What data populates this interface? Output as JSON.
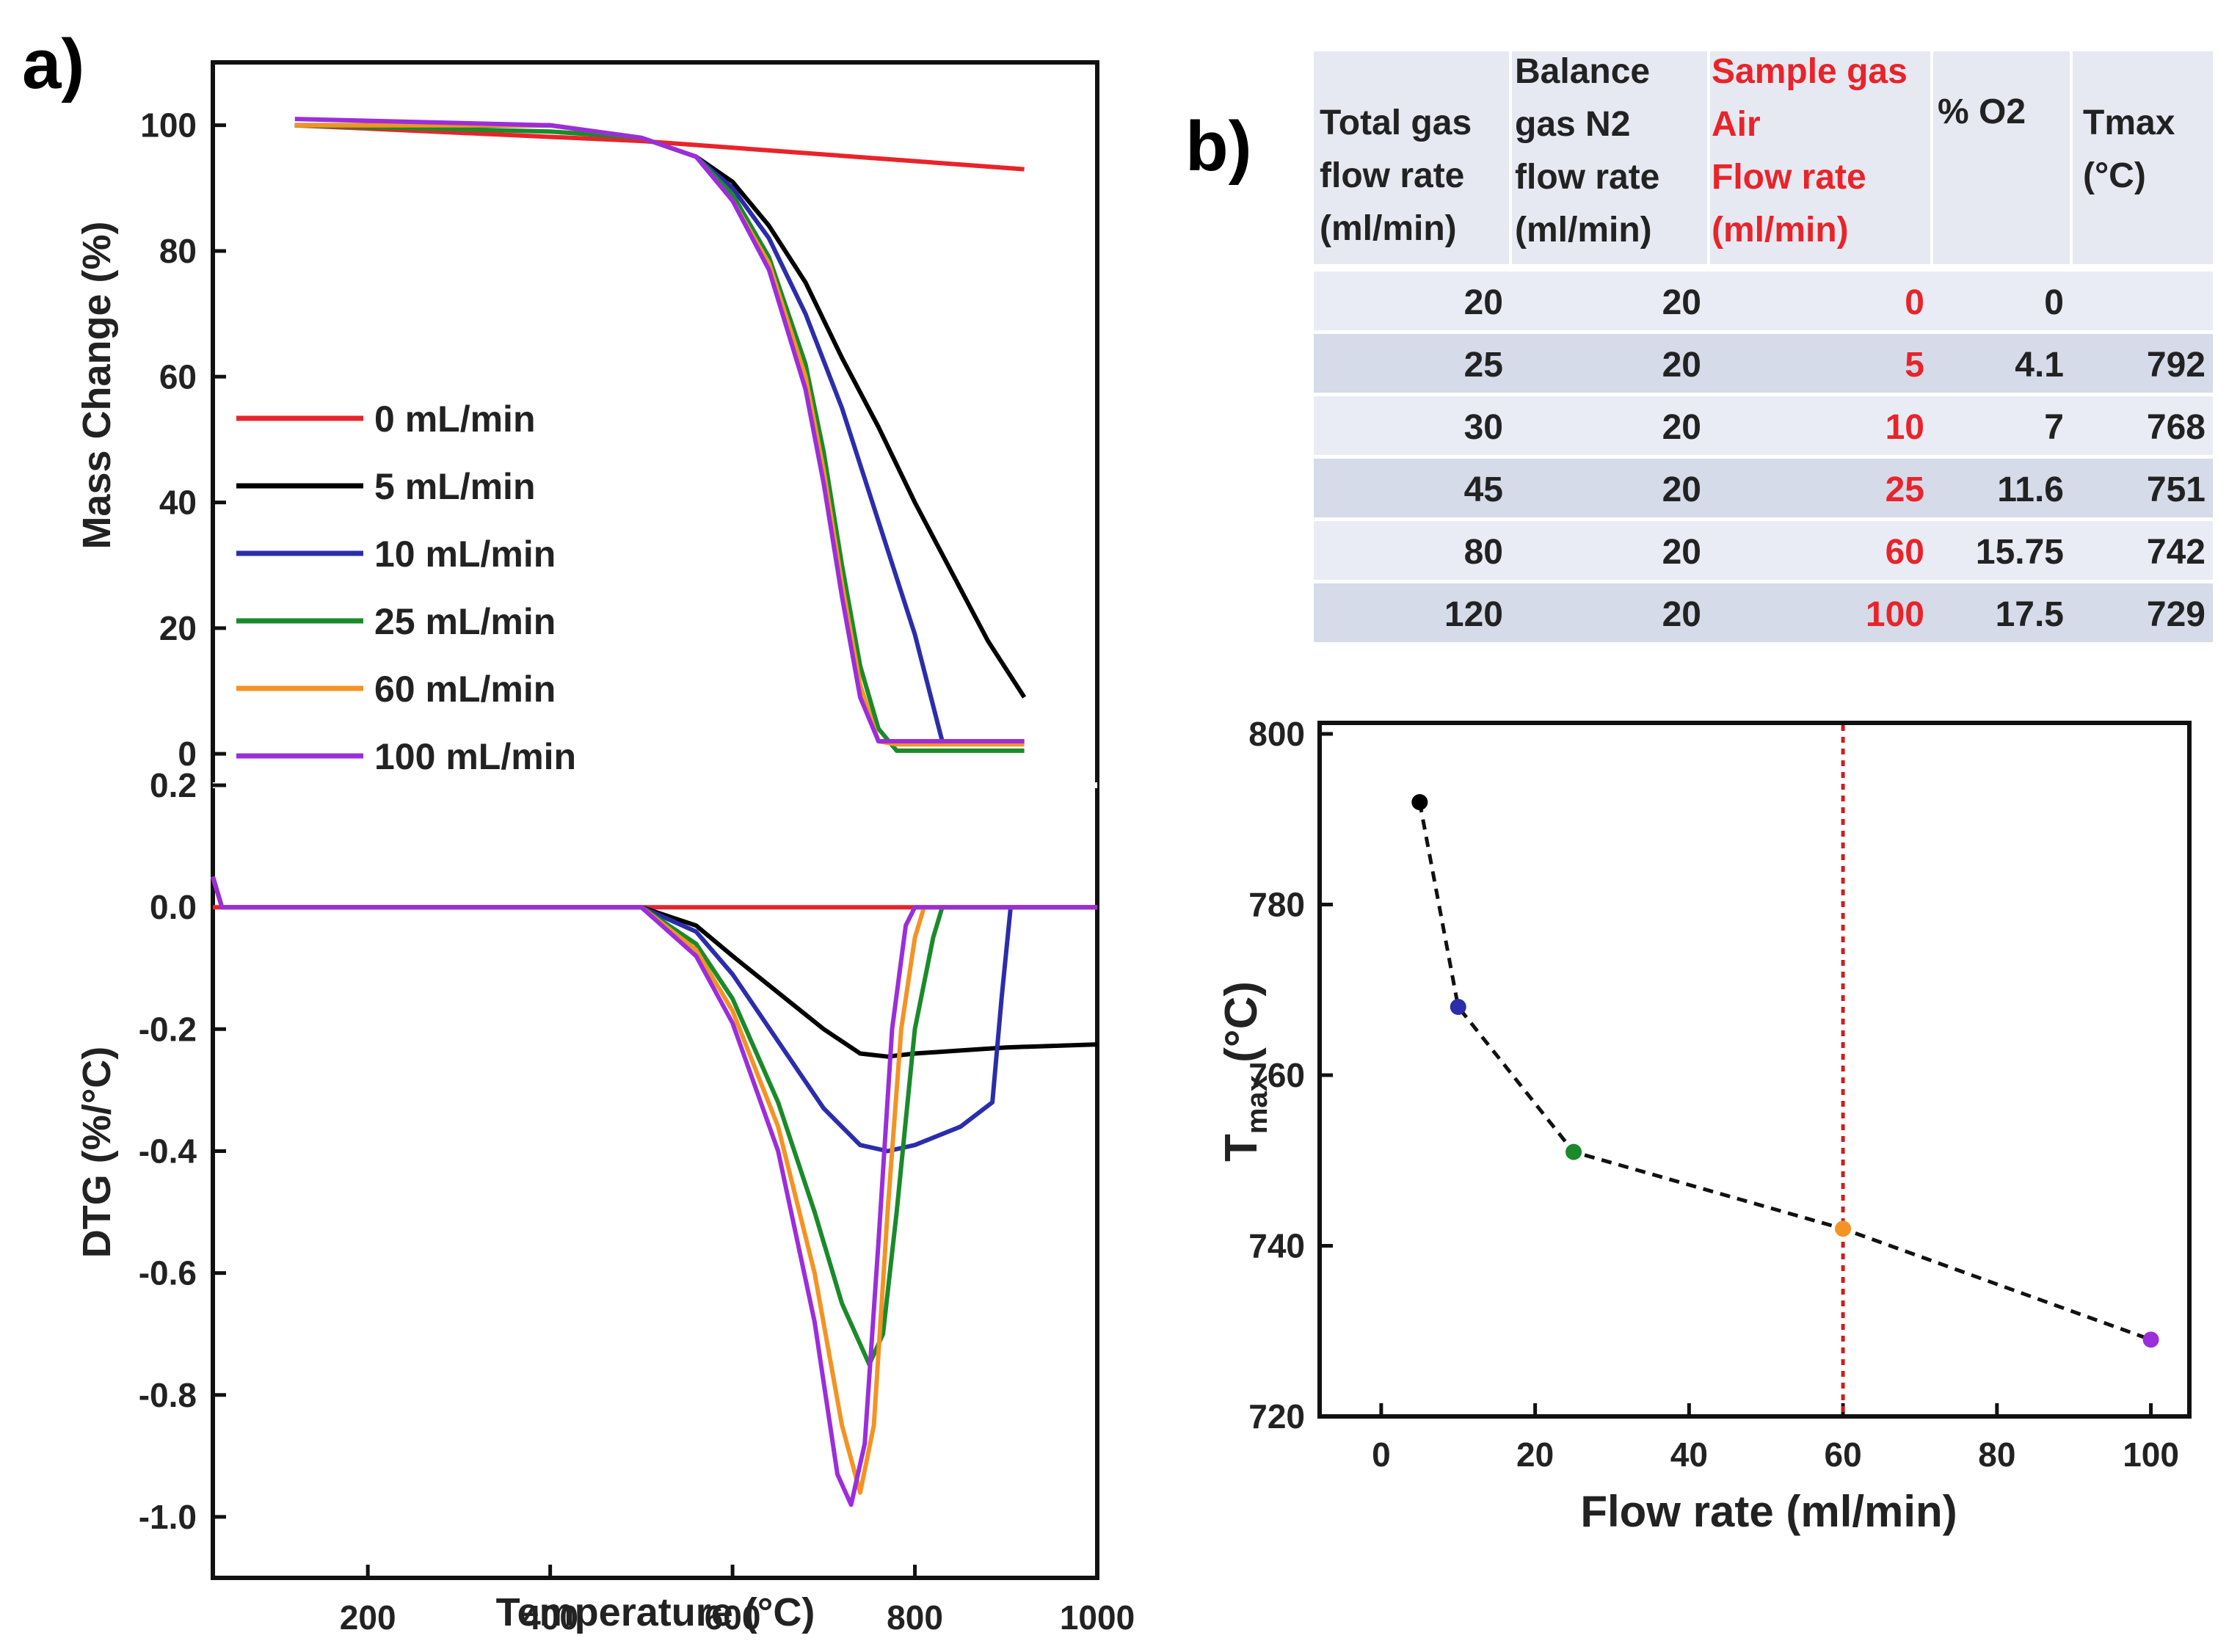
{
  "labels": {
    "panel_a": "a)",
    "panel_b": "b)"
  },
  "chart_data": [
    {
      "type": "line",
      "xlabel": "",
      "ylabel": "Mass Change (%)",
      "xlim": [
        30,
        1000
      ],
      "ylim": [
        -5,
        110
      ],
      "yticks": [
        "0",
        "20",
        "40",
        "60",
        "80",
        "100"
      ],
      "legend_placement": "left",
      "series": [
        {
          "name": "0 mL/min",
          "color": "#e8242a",
          "points": [
            [
              120,
              100
            ],
            [
              500,
              97.5
            ],
            [
              920,
              93
            ]
          ]
        },
        {
          "name": "5 mL/min",
          "color": "#000000",
          "points": [
            [
              120,
              100
            ],
            [
              400,
              100
            ],
            [
              500,
              98
            ],
            [
              560,
              95
            ],
            [
              600,
              91
            ],
            [
              640,
              84
            ],
            [
              680,
              75
            ],
            [
              720,
              63
            ],
            [
              760,
              52
            ],
            [
              800,
              40
            ],
            [
              840,
              29
            ],
            [
              880,
              18
            ],
            [
              920,
              9
            ]
          ]
        },
        {
          "name": "10 mL/min",
          "color": "#2b2dab",
          "points": [
            [
              120,
              100
            ],
            [
              400,
              100
            ],
            [
              500,
              98
            ],
            [
              560,
              95
            ],
            [
              600,
              90
            ],
            [
              640,
              82
            ],
            [
              680,
              70
            ],
            [
              720,
              55
            ],
            [
              760,
              37
            ],
            [
              800,
              19
            ],
            [
              830,
              2
            ],
            [
              920,
              2
            ]
          ]
        },
        {
          "name": "25 mL/min",
          "color": "#1a8a2a",
          "points": [
            [
              120,
              100
            ],
            [
              400,
              99
            ],
            [
              500,
              98
            ],
            [
              560,
              95
            ],
            [
              600,
              89
            ],
            [
              640,
              79
            ],
            [
              680,
              62
            ],
            [
              700,
              48
            ],
            [
              720,
              30
            ],
            [
              740,
              14
            ],
            [
              760,
              4
            ],
            [
              780,
              0.5
            ],
            [
              920,
              0.5
            ]
          ]
        },
        {
          "name": "60 mL/min",
          "color": "#f39324",
          "points": [
            [
              120,
              100
            ],
            [
              400,
              100
            ],
            [
              500,
              98
            ],
            [
              560,
              95
            ],
            [
              600,
              88
            ],
            [
              640,
              78
            ],
            [
              680,
              60
            ],
            [
              700,
              45
            ],
            [
              720,
              27
            ],
            [
              740,
              11
            ],
            [
              760,
              2
            ],
            [
              780,
              1.5
            ],
            [
              920,
              1.5
            ]
          ]
        },
        {
          "name": "100 mL/min",
          "color": "#9b2ddb",
          "points": [
            [
              120,
              101
            ],
            [
              400,
              100
            ],
            [
              500,
              98
            ],
            [
              560,
              95
            ],
            [
              600,
              88
            ],
            [
              640,
              77
            ],
            [
              680,
              58
            ],
            [
              700,
              43
            ],
            [
              720,
              25
            ],
            [
              740,
              9
            ],
            [
              760,
              2
            ],
            [
              780,
              2
            ],
            [
              920,
              2
            ]
          ]
        }
      ]
    },
    {
      "type": "line",
      "xlabel": "Temperature (°C)",
      "ylabel": "DTG (%/°C)",
      "xlim": [
        30,
        1000
      ],
      "ylim": [
        -1.1,
        0.2
      ],
      "xticks": [
        "200",
        "400",
        "600",
        "800",
        "1000"
      ],
      "yticks": [
        "0.2",
        "0.0",
        "-0.2",
        "-0.4",
        "-0.6",
        "-0.8",
        "-1.0"
      ],
      "series": [
        {
          "name": "0 mL/min",
          "color": "#e8242a",
          "points": [
            [
              30,
              0
            ],
            [
              1000,
              0
            ]
          ]
        },
        {
          "name": "5 mL/min",
          "color": "#000000",
          "points": [
            [
              30,
              0.05
            ],
            [
              40,
              0
            ],
            [
              500,
              0
            ],
            [
              560,
              -0.03
            ],
            [
              600,
              -0.08
            ],
            [
              650,
              -0.14
            ],
            [
              700,
              -0.2
            ],
            [
              740,
              -0.24
            ],
            [
              770,
              -0.245
            ],
            [
              800,
              -0.24
            ],
            [
              850,
              -0.235
            ],
            [
              900,
              -0.23
            ],
            [
              1000,
              -0.225
            ]
          ]
        },
        {
          "name": "10 mL/min",
          "color": "#2b2dab",
          "points": [
            [
              30,
              0.05
            ],
            [
              40,
              0
            ],
            [
              500,
              0
            ],
            [
              560,
              -0.04
            ],
            [
              600,
              -0.11
            ],
            [
              650,
              -0.22
            ],
            [
              700,
              -0.33
            ],
            [
              740,
              -0.39
            ],
            [
              770,
              -0.4
            ],
            [
              800,
              -0.39
            ],
            [
              850,
              -0.36
            ],
            [
              885,
              -0.32
            ],
            [
              895,
              -0.15
            ],
            [
              905,
              0
            ],
            [
              1000,
              0
            ]
          ]
        },
        {
          "name": "25 mL/min",
          "color": "#1a8a2a",
          "points": [
            [
              30,
              0.05
            ],
            [
              40,
              0
            ],
            [
              500,
              0
            ],
            [
              560,
              -0.06
            ],
            [
              600,
              -0.15
            ],
            [
              650,
              -0.32
            ],
            [
              690,
              -0.5
            ],
            [
              720,
              -0.65
            ],
            [
              750,
              -0.75
            ],
            [
              765,
              -0.7
            ],
            [
              780,
              -0.5
            ],
            [
              800,
              -0.2
            ],
            [
              820,
              -0.05
            ],
            [
              830,
              0
            ],
            [
              1000,
              0
            ]
          ]
        },
        {
          "name": "60 mL/min",
          "color": "#f39324",
          "points": [
            [
              30,
              0.05
            ],
            [
              40,
              0
            ],
            [
              500,
              0
            ],
            [
              560,
              -0.07
            ],
            [
              600,
              -0.17
            ],
            [
              650,
              -0.36
            ],
            [
              690,
              -0.6
            ],
            [
              720,
              -0.85
            ],
            [
              740,
              -0.96
            ],
            [
              755,
              -0.85
            ],
            [
              770,
              -0.5
            ],
            [
              785,
              -0.2
            ],
            [
              800,
              -0.05
            ],
            [
              810,
              0
            ],
            [
              1000,
              0
            ]
          ]
        },
        {
          "name": "100 mL/min",
          "color": "#9b2ddb",
          "points": [
            [
              30,
              0.05
            ],
            [
              40,
              0
            ],
            [
              500,
              0
            ],
            [
              560,
              -0.08
            ],
            [
              600,
              -0.19
            ],
            [
              650,
              -0.4
            ],
            [
              690,
              -0.68
            ],
            [
              715,
              -0.93
            ],
            [
              730,
              -0.98
            ],
            [
              745,
              -0.88
            ],
            [
              760,
              -0.55
            ],
            [
              775,
              -0.2
            ],
            [
              790,
              -0.03
            ],
            [
              800,
              0
            ],
            [
              1000,
              0
            ]
          ]
        }
      ]
    },
    {
      "type": "table",
      "header_black": [
        "Total gas flow rate (ml/min)",
        "Balance gas N2 flow rate (ml/min)"
      ],
      "header_red": "Sample gas Air Flow rate (ml/min)",
      "header_tail": [
        "% O2",
        "Tmax (°C)"
      ],
      "header_lines": {
        "total": [
          "Total gas",
          "flow rate",
          "(ml/min)"
        ],
        "balance": [
          "Balance",
          "gas  N2",
          "flow rate",
          "(ml/min)"
        ],
        "sample": [
          "Sample gas",
          "Air",
          "Flow rate",
          "(ml/min)"
        ],
        "o2": [
          "% O2"
        ],
        "tmax": [
          "Tmax",
          "(°C)"
        ]
      },
      "rows": [
        [
          "20",
          "20",
          "0",
          "0",
          ""
        ],
        [
          "25",
          "20",
          "5",
          "4.1",
          "792"
        ],
        [
          "30",
          "20",
          "10",
          "7",
          "768"
        ],
        [
          "45",
          "20",
          "25",
          "11.6",
          "751"
        ],
        [
          "80",
          "20",
          "60",
          "15.75",
          "742"
        ],
        [
          "120",
          "20",
          "100",
          "17.5",
          "729"
        ]
      ]
    },
    {
      "type": "scatter",
      "xlabel": "Flow rate (ml/min)",
      "ylabel_main": "T",
      "ylabel_sub": "max",
      "ylabel_unit": " (°C)",
      "xlim": [
        -8,
        105
      ],
      "ylim": [
        720,
        800
      ],
      "xticks": [
        "0",
        "20",
        "40",
        "60",
        "80",
        "100"
      ],
      "yticks": [
        "720",
        "740",
        "760",
        "780",
        "800"
      ],
      "reference_line_x": 60,
      "reference_line_color": "#cc1f1f",
      "points": [
        {
          "x": 5,
          "y": 792,
          "color": "#000000"
        },
        {
          "x": 10,
          "y": 768,
          "color": "#2b2dab"
        },
        {
          "x": 25,
          "y": 751,
          "color": "#1a8a2a"
        },
        {
          "x": 60,
          "y": 742,
          "color": "#f39324"
        },
        {
          "x": 100,
          "y": 729,
          "color": "#9b2ddb"
        }
      ]
    }
  ]
}
